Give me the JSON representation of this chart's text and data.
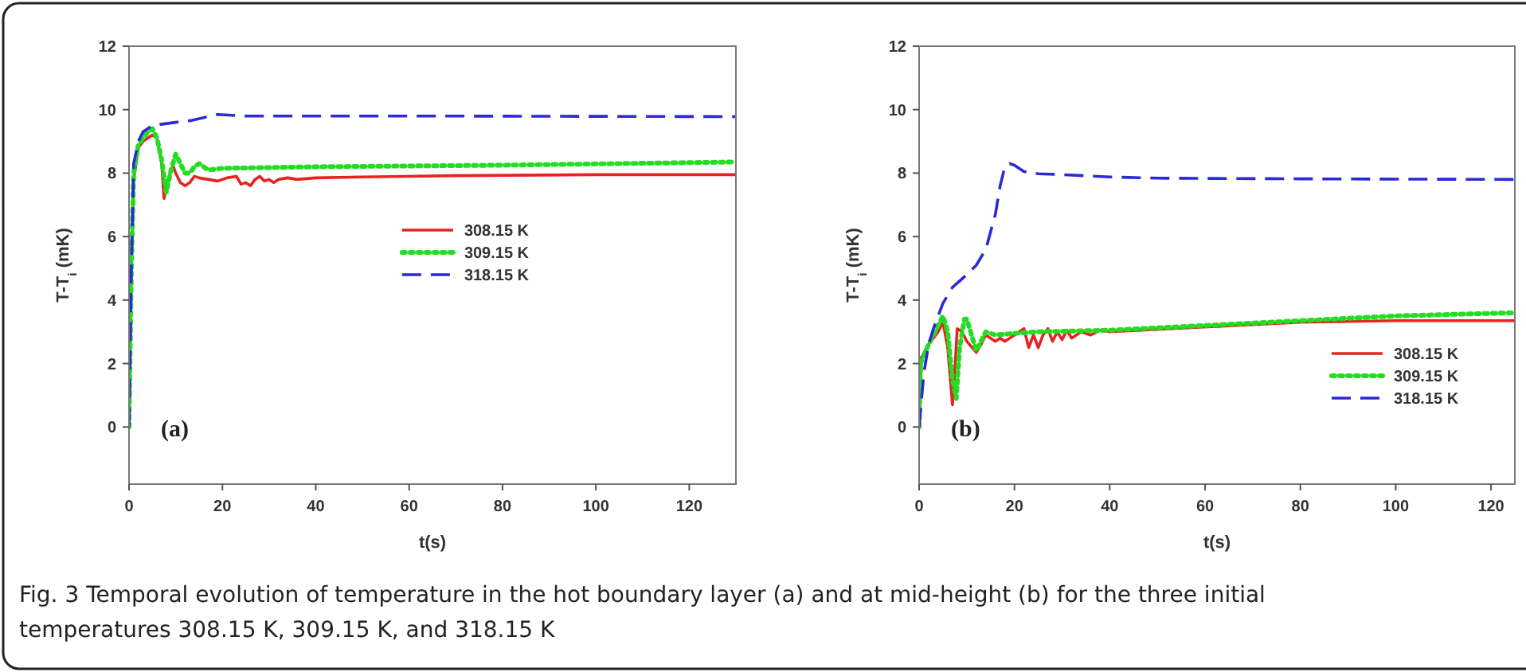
{
  "chart_data": [
    {
      "type": "line",
      "xlabel": "t(s)",
      "ylabel": "T-T$_{i}$ (mK)",
      "xlim": [
        0,
        130
      ],
      "ylim": [
        -1.8,
        12
      ],
      "xticks": [
        0,
        20,
        40,
        60,
        80,
        100,
        120
      ],
      "yticks": [
        0,
        2,
        4,
        6,
        8,
        10,
        12
      ],
      "legend": "center",
      "annotations": [
        "(a)"
      ],
      "series": [
        {
          "name": "308.15 K",
          "color": "#e8231f",
          "line_style": "solid",
          "x": [
            0,
            0.5,
            1,
            2,
            3,
            5,
            6,
            7,
            7.5,
            8,
            9,
            9.5,
            10,
            11,
            12,
            13,
            14,
            15,
            17,
            19,
            21,
            23,
            24,
            25,
            26,
            27,
            28,
            29,
            30,
            31,
            32,
            34,
            36,
            40,
            50,
            70,
            100,
            130
          ],
          "values": [
            0,
            5,
            7.8,
            8.8,
            9.0,
            9.2,
            9.1,
            8.3,
            7.2,
            7.6,
            8.1,
            8.2,
            8.0,
            7.7,
            7.6,
            7.7,
            7.9,
            7.85,
            7.8,
            7.75,
            7.85,
            7.9,
            7.65,
            7.7,
            7.6,
            7.8,
            7.9,
            7.75,
            7.8,
            7.7,
            7.8,
            7.85,
            7.8,
            7.85,
            7.88,
            7.92,
            7.95,
            7.95
          ]
        },
        {
          "name": "309.15 K",
          "color": "#22dd22",
          "line_style": "dotted",
          "x": [
            0,
            0.5,
            1,
            2,
            4,
            5,
            6,
            7,
            8,
            9,
            10,
            11,
            12,
            13,
            14,
            15,
            17,
            20,
            40,
            80,
            130
          ],
          "values": [
            0,
            5,
            8,
            8.9,
            9.3,
            9.4,
            9.1,
            8.4,
            7.4,
            8.1,
            8.6,
            8.3,
            8.0,
            8.0,
            8.2,
            8.3,
            8.1,
            8.15,
            8.2,
            8.25,
            8.35
          ]
        },
        {
          "name": "318.15 K",
          "color": "#2a2ad8",
          "line_style": "dashed",
          "x": [
            0,
            0.5,
            1,
            2,
            3,
            5,
            10,
            13,
            16,
            19,
            25,
            60,
            130
          ],
          "values": [
            0,
            5,
            8.3,
            9.0,
            9.3,
            9.5,
            9.6,
            9.65,
            9.75,
            9.85,
            9.8,
            9.8,
            9.78
          ]
        }
      ]
    },
    {
      "type": "line",
      "xlabel": "t(s)",
      "ylabel": "T-T$_{i}$ (mK)",
      "xlim": [
        0,
        125
      ],
      "ylim": [
        -1.8,
        12
      ],
      "xticks": [
        0,
        20,
        40,
        60,
        80,
        100,
        120
      ],
      "yticks": [
        0,
        2,
        4,
        6,
        8,
        10,
        12
      ],
      "legend": "bottom right",
      "annotations": [
        "(b)",
        "Fig. 3 Temporal evolution of temperature in the hot boundary layer (a) and at mid-height (b) for the three initial temperatures 308.15 K, 309.15 K, and 318.15 K"
      ],
      "series": [
        {
          "name": "308.15 K",
          "color": "#e8231f",
          "line_style": "solid",
          "x": [
            0,
            0.5,
            2,
            4,
            5,
            6,
            7,
            7.5,
            8,
            9,
            10,
            12,
            13,
            14,
            15,
            16,
            17,
            18,
            20,
            22,
            23,
            24,
            25,
            26,
            27,
            28,
            29,
            30,
            31,
            32,
            34,
            36,
            38,
            40,
            60,
            80,
            100,
            125
          ],
          "values": [
            0,
            2.2,
            2.6,
            3.0,
            3.3,
            2.5,
            0.7,
            1.8,
            3.1,
            3.0,
            2.7,
            2.35,
            2.6,
            2.9,
            2.8,
            2.7,
            2.8,
            2.7,
            2.9,
            3.1,
            2.5,
            2.9,
            2.5,
            2.9,
            3.1,
            2.7,
            3.0,
            2.75,
            3.05,
            2.8,
            3.0,
            2.9,
            3.05,
            3.0,
            null,
            3.3,
            3.35,
            3.35
          ]
        },
        {
          "name": "309.15 K",
          "color": "#22dd22",
          "line_style": "dotted",
          "x": [
            0,
            0.3,
            2,
            4,
            5,
            6,
            7,
            7.8,
            8.5,
            9.5,
            10,
            11,
            12,
            13,
            14,
            16,
            20,
            25,
            40,
            60,
            80,
            100,
            125
          ],
          "values": [
            0,
            2,
            2.6,
            3.2,
            3.5,
            3.0,
            1.5,
            0.9,
            2.5,
            3.4,
            3.4,
            2.9,
            2.4,
            2.7,
            3.0,
            2.9,
            2.95,
            3.0,
            3.05,
            3.2,
            3.35,
            3.5,
            3.6
          ]
        },
        {
          "name": "318.15 K",
          "color": "#2a2ad8",
          "line_style": "dashed",
          "x": [
            0,
            1,
            2,
            3,
            5,
            7,
            10,
            12,
            14,
            16,
            17,
            18,
            19,
            20,
            22,
            25,
            30,
            40,
            50,
            80,
            125
          ],
          "values": [
            0,
            1.7,
            2.6,
            3.1,
            3.9,
            4.4,
            4.8,
            5.1,
            5.6,
            6.7,
            7.6,
            8.2,
            8.3,
            8.25,
            8.05,
            7.98,
            7.95,
            7.88,
            7.84,
            7.82,
            7.8
          ]
        }
      ]
    }
  ]
}
